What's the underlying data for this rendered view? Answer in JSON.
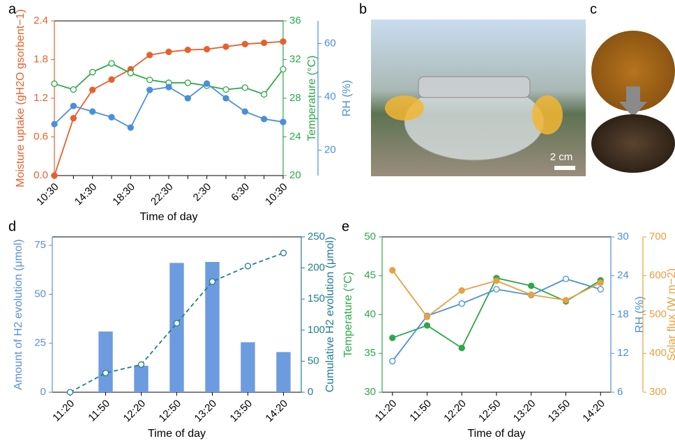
{
  "panels": [
    "a",
    "b",
    "c",
    "d",
    "e"
  ],
  "scale_bar": "2 cm",
  "chart_data": [
    {
      "type": "line",
      "x_label": "Time of day",
      "categories": [
        "10:30",
        null,
        "14:30",
        null,
        "18:30",
        null,
        "22:30",
        null,
        "2:30",
        null,
        "6:30",
        null,
        "10:30"
      ],
      "y_label": "Moisture uptake (gH2O gsorbent−1)",
      "ylim": [
        0,
        2.4
      ],
      "yticks": [
        {
          "value": 0,
          "label": "0.0"
        },
        0.6,
        1.2,
        1.8,
        2.4
      ],
      "y_color": "#e8602c",
      "y2_label": "Temperature (°C)",
      "y2lim": [
        20,
        36
      ],
      "y2ticks": [
        20,
        24,
        28,
        32,
        36
      ],
      "y2_color": "#2ca84a",
      "y3_label": "RH (%)",
      "y3lim": [
        10.5,
        68.5
      ],
      "y3ticks": [
        20,
        40,
        60
      ],
      "y3_color": "#4a8fdc",
      "series": [
        {
          "name": "Moisture uptake",
          "color": "#e8602c",
          "values": [
            0,
            0.89,
            1.33,
            1.49,
            1.65,
            1.87,
            1.92,
            1.95,
            1.96,
            2.0,
            2.04,
            2.06,
            2.08
          ]
        },
        {
          "name": "Temperature",
          "color": "#2ca84a",
          "axis": "y2",
          "values": [
            29.5,
            28.9,
            30.7,
            31.6,
            30.6,
            29.9,
            29.6,
            29.6,
            29.3,
            28.9,
            29.1,
            28.4,
            31.0
          ]
        },
        {
          "name": "RH",
          "color": "#4a8fdc",
          "axis": "y3",
          "values": [
            29.8,
            36.6,
            34.5,
            32.4,
            28.5,
            42.6,
            43.7,
            39.5,
            45.0,
            39.5,
            34.5,
            31.7,
            30.6
          ]
        }
      ]
    },
    {
      "type": "bar",
      "x_label": "Time of day",
      "categories": [
        "11:20",
        "11:50",
        "12:20",
        "12:50",
        "13:20",
        "13:50",
        "14:20"
      ],
      "y_label": "Amount of H2 evolution (μmol)",
      "ylim": [
        0,
        79.3
      ],
      "yticks": [
        0,
        25,
        50,
        75
      ],
      "y_color": "#5b8fd8",
      "y2_label": "Cumulative H2 evolution (μmol)",
      "y2lim": [
        0,
        250
      ],
      "y2ticks": [
        0,
        50,
        100,
        150,
        200,
        250
      ],
      "y2_color": "#1f7f8a",
      "series": [
        {
          "name": "Amount of H2 evolution",
          "color": "#6d9be0",
          "values": [
            null,
            31,
            13.5,
            66,
            66.5,
            25.5,
            20.5
          ]
        },
        {
          "name": "Cumulative H2 evolution",
          "color": "#1f7f8a",
          "type": "line",
          "dashed": true,
          "axis": "y2",
          "values": [
            0,
            31,
            44.5,
            111,
            178,
            203,
            224
          ]
        }
      ]
    },
    {
      "type": "line",
      "x_label": "Time of day",
      "categories": [
        "11:20",
        "11:50",
        "12:20",
        "12:50",
        "13:20",
        "13:50",
        "14:20"
      ],
      "y_label": "Temperature (°C)",
      "ylim": [
        30,
        50
      ],
      "yticks": [
        30,
        35,
        40,
        45,
        50
      ],
      "y_color": "#2ca84a",
      "y2_label": "RH (%)",
      "y2lim": [
        6,
        30
      ],
      "y2ticks": [
        6,
        12,
        18,
        24,
        30
      ],
      "y2_color": "#4a8fdc",
      "y3_label": "Solar flux (W m−2)",
      "y3lim": [
        300,
        700
      ],
      "y3ticks": [
        300,
        400,
        500,
        600,
        700
      ],
      "y3_color": "#e8a040",
      "series": [
        {
          "name": "Temperature",
          "color": "#2ca84a",
          "values": [
            37.0,
            38.6,
            35.7,
            44.7,
            43.7,
            41.7,
            44.4
          ]
        },
        {
          "name": "RH",
          "color": "#4a8fdc",
          "axis": "y2",
          "values": [
            10.8,
            17.8,
            19.7,
            21.9,
            21.0,
            23.5,
            21.9
          ]
        },
        {
          "name": "Solar flux",
          "color": "#e8a040",
          "axis": "y3",
          "values": [
            614,
            494,
            562,
            587,
            551,
            537,
            582
          ]
        }
      ]
    }
  ]
}
